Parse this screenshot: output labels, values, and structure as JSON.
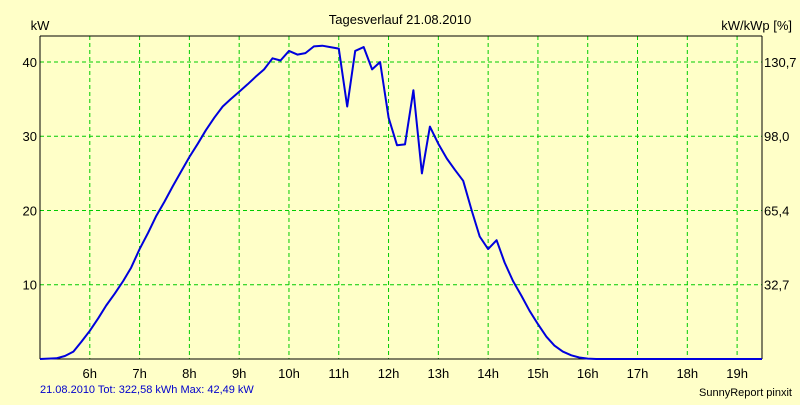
{
  "chart_data": {
    "type": "line",
    "title": "Tagesverlauf 21.08.2010",
    "ylabel_left": "kW",
    "ylabel_right": "kW/kWp [%]",
    "footer_left": "21.08.2010 Tot: 322,58 kWh Max: 42,49 kW",
    "footer_right": "SunnyReport pinxit",
    "xlim": [
      5.0,
      19.5
    ],
    "ylim": [
      0,
      43.5
    ],
    "grid": true,
    "x_ticks": [
      {
        "value": 6,
        "label": "6h"
      },
      {
        "value": 7,
        "label": "7h"
      },
      {
        "value": 8,
        "label": "8h"
      },
      {
        "value": 9,
        "label": "9h"
      },
      {
        "value": 10,
        "label": "10h"
      },
      {
        "value": 11,
        "label": "11h"
      },
      {
        "value": 12,
        "label": "12h"
      },
      {
        "value": 13,
        "label": "13h"
      },
      {
        "value": 14,
        "label": "14h"
      },
      {
        "value": 15,
        "label": "15h"
      },
      {
        "value": 16,
        "label": "16h"
      },
      {
        "value": 17,
        "label": "17h"
      },
      {
        "value": 18,
        "label": "18h"
      },
      {
        "value": 19,
        "label": "19h"
      }
    ],
    "y_ticks_left": [
      {
        "value": 10,
        "label": "10"
      },
      {
        "value": 20,
        "label": "20"
      },
      {
        "value": 30,
        "label": "30"
      },
      {
        "value": 40,
        "label": "40"
      }
    ],
    "y_ticks_right": [
      {
        "value": 10,
        "label": "32,7"
      },
      {
        "value": 20,
        "label": "65,4"
      },
      {
        "value": 30,
        "label": "98,0"
      },
      {
        "value": 40,
        "label": "130,7"
      }
    ],
    "colors": {
      "background": "#ffffc8",
      "plot_background": "#ffffc8",
      "grid": "#00cc00",
      "line": "#0000dd",
      "axis": "#000000",
      "text": "#000000",
      "footer_left_text": "#0000cc"
    },
    "series": [
      {
        "x": [
          5.0,
          5.33,
          5.5,
          5.67,
          5.83,
          6.0,
          6.17,
          6.33,
          6.5,
          6.67,
          6.83,
          7.0,
          7.17,
          7.33,
          7.5,
          7.67,
          7.83,
          8.0,
          8.17,
          8.33,
          8.5,
          8.67,
          8.83,
          9.0,
          9.17,
          9.33,
          9.5,
          9.67,
          9.83,
          10.0,
          10.17,
          10.33,
          10.5,
          10.67,
          10.83,
          11.0,
          11.17,
          11.33,
          11.5,
          11.67,
          11.83,
          12.0,
          12.17,
          12.33,
          12.5,
          12.67,
          12.83,
          13.0,
          13.17,
          13.33,
          13.5,
          13.67,
          13.83,
          14.0,
          14.17,
          14.33,
          14.5,
          14.67,
          14.83,
          15.0,
          15.17,
          15.33,
          15.5,
          15.67,
          15.83,
          16.0,
          16.17,
          16.33,
          16.5,
          16.67,
          16.83,
          17.0,
          17.17,
          17.33,
          17.5,
          17.67,
          17.83,
          18.0,
          18.17,
          18.33,
          18.5,
          18.67,
          18.83,
          19.0,
          19.5
        ],
        "values": [
          0.0,
          0.1,
          0.4,
          1.0,
          2.3,
          3.8,
          5.5,
          7.2,
          8.8,
          10.5,
          12.3,
          14.8,
          17.0,
          19.2,
          21.2,
          23.3,
          25.2,
          27.2,
          29.0,
          30.8,
          32.5,
          34.0,
          35.0,
          36.0,
          37.0,
          38.0,
          39.0,
          40.5,
          40.2,
          41.5,
          41.0,
          41.2,
          42.1,
          42.2,
          42.0,
          41.8,
          34.0,
          41.5,
          42.0,
          39.0,
          40.0,
          32.5,
          28.8,
          28.9,
          36.2,
          25.0,
          31.3,
          29.0,
          27.0,
          25.5,
          24.0,
          20.0,
          16.5,
          14.8,
          16.0,
          13.0,
          10.5,
          8.5,
          6.5,
          4.7,
          3.0,
          1.8,
          1.0,
          0.5,
          0.2,
          0.05,
          0.0,
          0.0,
          0.0,
          0.0,
          0.0,
          0.0,
          0.0,
          0.0,
          0.0,
          0.0,
          0.0,
          0.0,
          0.0,
          0.0,
          0.0,
          0.0,
          0.0,
          0.0,
          0.0
        ]
      }
    ]
  }
}
